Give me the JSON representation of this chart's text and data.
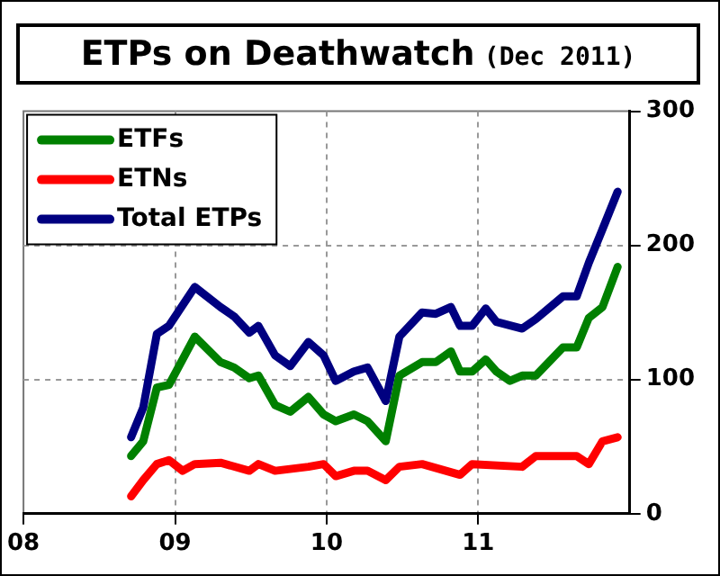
{
  "chart_data": {
    "type": "line",
    "title": "ETPs on Deathwatch",
    "subtitle": "(Dec 2011)",
    "legend": "top left",
    "grid": true,
    "marker": "none",
    "line_style": "solid",
    "xlim": [
      2008,
      2012
    ],
    "xticks": [
      {
        "value": 2008,
        "label": "08"
      },
      {
        "value": 2009,
        "label": "09"
      },
      {
        "value": 2010,
        "label": "10"
      },
      {
        "value": 2011,
        "label": "11"
      }
    ],
    "ylim": [
      0,
      300
    ],
    "yticks": [
      0,
      100,
      200,
      300
    ],
    "series": [
      {
        "name": "ETFs",
        "color": "#008000",
        "x": [
          2008.71,
          2008.79,
          2008.88,
          2008.96,
          2009.13,
          2009.3,
          2009.39,
          2009.49,
          2009.55,
          2009.66,
          2009.76,
          2009.88,
          2009.98,
          2010.06,
          2010.18,
          2010.27,
          2010.39,
          2010.48,
          2010.63,
          2010.72,
          2010.82,
          2010.88,
          2010.96,
          2011.05,
          2011.12,
          2011.21,
          2011.29,
          2011.38,
          2011.56,
          2011.65,
          2011.73,
          2011.82,
          2011.92
        ],
        "values": [
          43,
          54,
          94,
          96,
          132,
          113,
          109,
          101,
          103,
          81,
          76,
          87,
          74,
          69,
          74,
          69,
          54,
          103,
          113,
          113,
          121,
          106,
          106,
          115,
          106,
          99,
          103,
          103,
          124,
          124,
          146,
          154,
          184
        ]
      },
      {
        "name": "ETNs",
        "color": "#ff0000",
        "x": [
          2008.71,
          2008.79,
          2008.88,
          2008.96,
          2009.05,
          2009.13,
          2009.3,
          2009.49,
          2009.55,
          2009.66,
          2009.88,
          2009.98,
          2010.06,
          2010.18,
          2010.27,
          2010.39,
          2010.48,
          2010.63,
          2010.88,
          2010.96,
          2011.29,
          2011.38,
          2011.65,
          2011.73,
          2011.82,
          2011.92
        ],
        "values": [
          13,
          25,
          37,
          40,
          32,
          37,
          38,
          32,
          37,
          32,
          35,
          37,
          28,
          32,
          32,
          25,
          35,
          37,
          29,
          37,
          35,
          43,
          43,
          37,
          54,
          57
        ]
      },
      {
        "name": "Total ETPs",
        "color": "#000080",
        "x": [
          2008.71,
          2008.79,
          2008.88,
          2008.96,
          2009.13,
          2009.3,
          2009.39,
          2009.49,
          2009.55,
          2009.66,
          2009.76,
          2009.88,
          2009.98,
          2010.06,
          2010.18,
          2010.27,
          2010.39,
          2010.48,
          2010.63,
          2010.72,
          2010.82,
          2010.88,
          2010.96,
          2011.05,
          2011.12,
          2011.29,
          2011.38,
          2011.56,
          2011.65,
          2011.73,
          2011.82,
          2011.92
        ],
        "values": [
          57,
          79,
          134,
          140,
          169,
          154,
          147,
          135,
          140,
          118,
          110,
          128,
          118,
          99,
          106,
          109,
          84,
          132,
          150,
          149,
          154,
          140,
          140,
          153,
          143,
          138,
          145,
          162,
          162,
          187,
          212,
          240
        ]
      }
    ]
  }
}
